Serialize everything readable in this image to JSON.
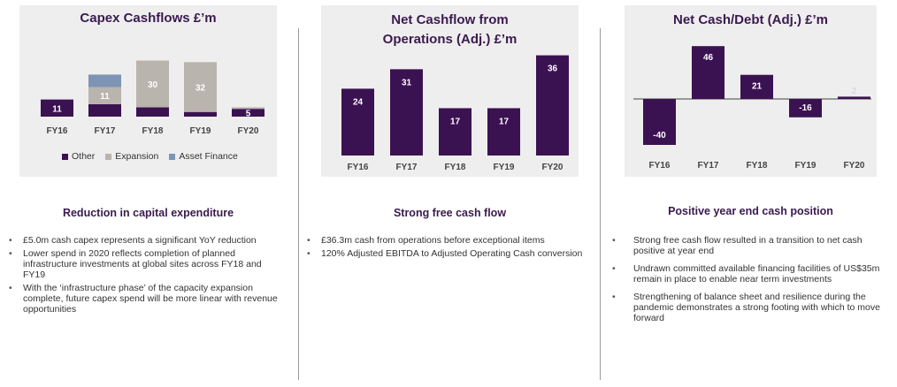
{
  "colors": {
    "other": "#3b1251",
    "expansion": "#b9b4ad",
    "asset_finance": "#7d94b4",
    "title": "#3a1a4f"
  },
  "chart_data": [
    {
      "type": "bar",
      "stacked": true,
      "title": "Capex Cashflows £’m",
      "categories": [
        "FY16",
        "FY17",
        "FY18",
        "FY19",
        "FY20"
      ],
      "series": [
        {
          "name": "Other",
          "values": [
            11,
            8,
            6,
            3,
            5
          ]
        },
        {
          "name": "Expansion",
          "values": [
            0,
            11,
            30,
            32,
            1
          ]
        },
        {
          "name": "Asset Finance",
          "values": [
            0,
            8,
            0,
            0,
            0
          ]
        }
      ],
      "data_labels": [
        {
          "text": "11",
          "series": 0,
          "index": 0
        },
        {
          "text": "11",
          "series": 1,
          "index": 1
        },
        {
          "text": "30",
          "series": 1,
          "index": 2
        },
        {
          "text": "32",
          "series": 1,
          "index": 3
        },
        {
          "text": "5",
          "series": 0,
          "index": 4
        }
      ],
      "ylim": [
        0,
        42
      ],
      "legend": "bottom",
      "grid": false
    },
    {
      "type": "bar",
      "title": "Net Cashflow from Operations (Adj.) £’m",
      "categories": [
        "FY16",
        "FY17",
        "FY18",
        "FY19",
        "FY20"
      ],
      "values": [
        24,
        31,
        17,
        17,
        36
      ],
      "ylim": [
        0,
        40
      ],
      "grid": false
    },
    {
      "type": "bar",
      "title": "Net Cash/Debt (Adj.) £’m",
      "categories": [
        "FY16",
        "FY17",
        "FY18",
        "FY19",
        "FY20"
      ],
      "values": [
        -40,
        46,
        21,
        -16,
        2
      ],
      "ylim": [
        -45,
        50
      ],
      "grid": false
    }
  ],
  "sections": [
    {
      "heading": "Reduction in capital expenditure",
      "bullets": [
        "£5.0m cash capex represents a significant YoY reduction",
        "Lower spend in 2020 reflects completion of planned infrastructure investments at global sites across FY18 and FY19",
        "With the ‘infrastructure phase’ of the capacity expansion complete, future capex spend will be more linear with revenue opportunities"
      ]
    },
    {
      "heading": "Strong free cash flow",
      "bullets": [
        "£36.3m cash from operations before exceptional items",
        "120% Adjusted EBITDA to Adjusted Operating Cash conversion"
      ]
    },
    {
      "heading": "Positive year end cash position",
      "bullets": [
        "Strong free cash flow resulted in a transition to net cash positive at year end",
        "Undrawn committed available financing facilities of US$35m remain in place to enable near term investments",
        "Strengthening of balance sheet and resilience during the pandemic demonstrates a strong footing with which to move forward"
      ]
    }
  ]
}
